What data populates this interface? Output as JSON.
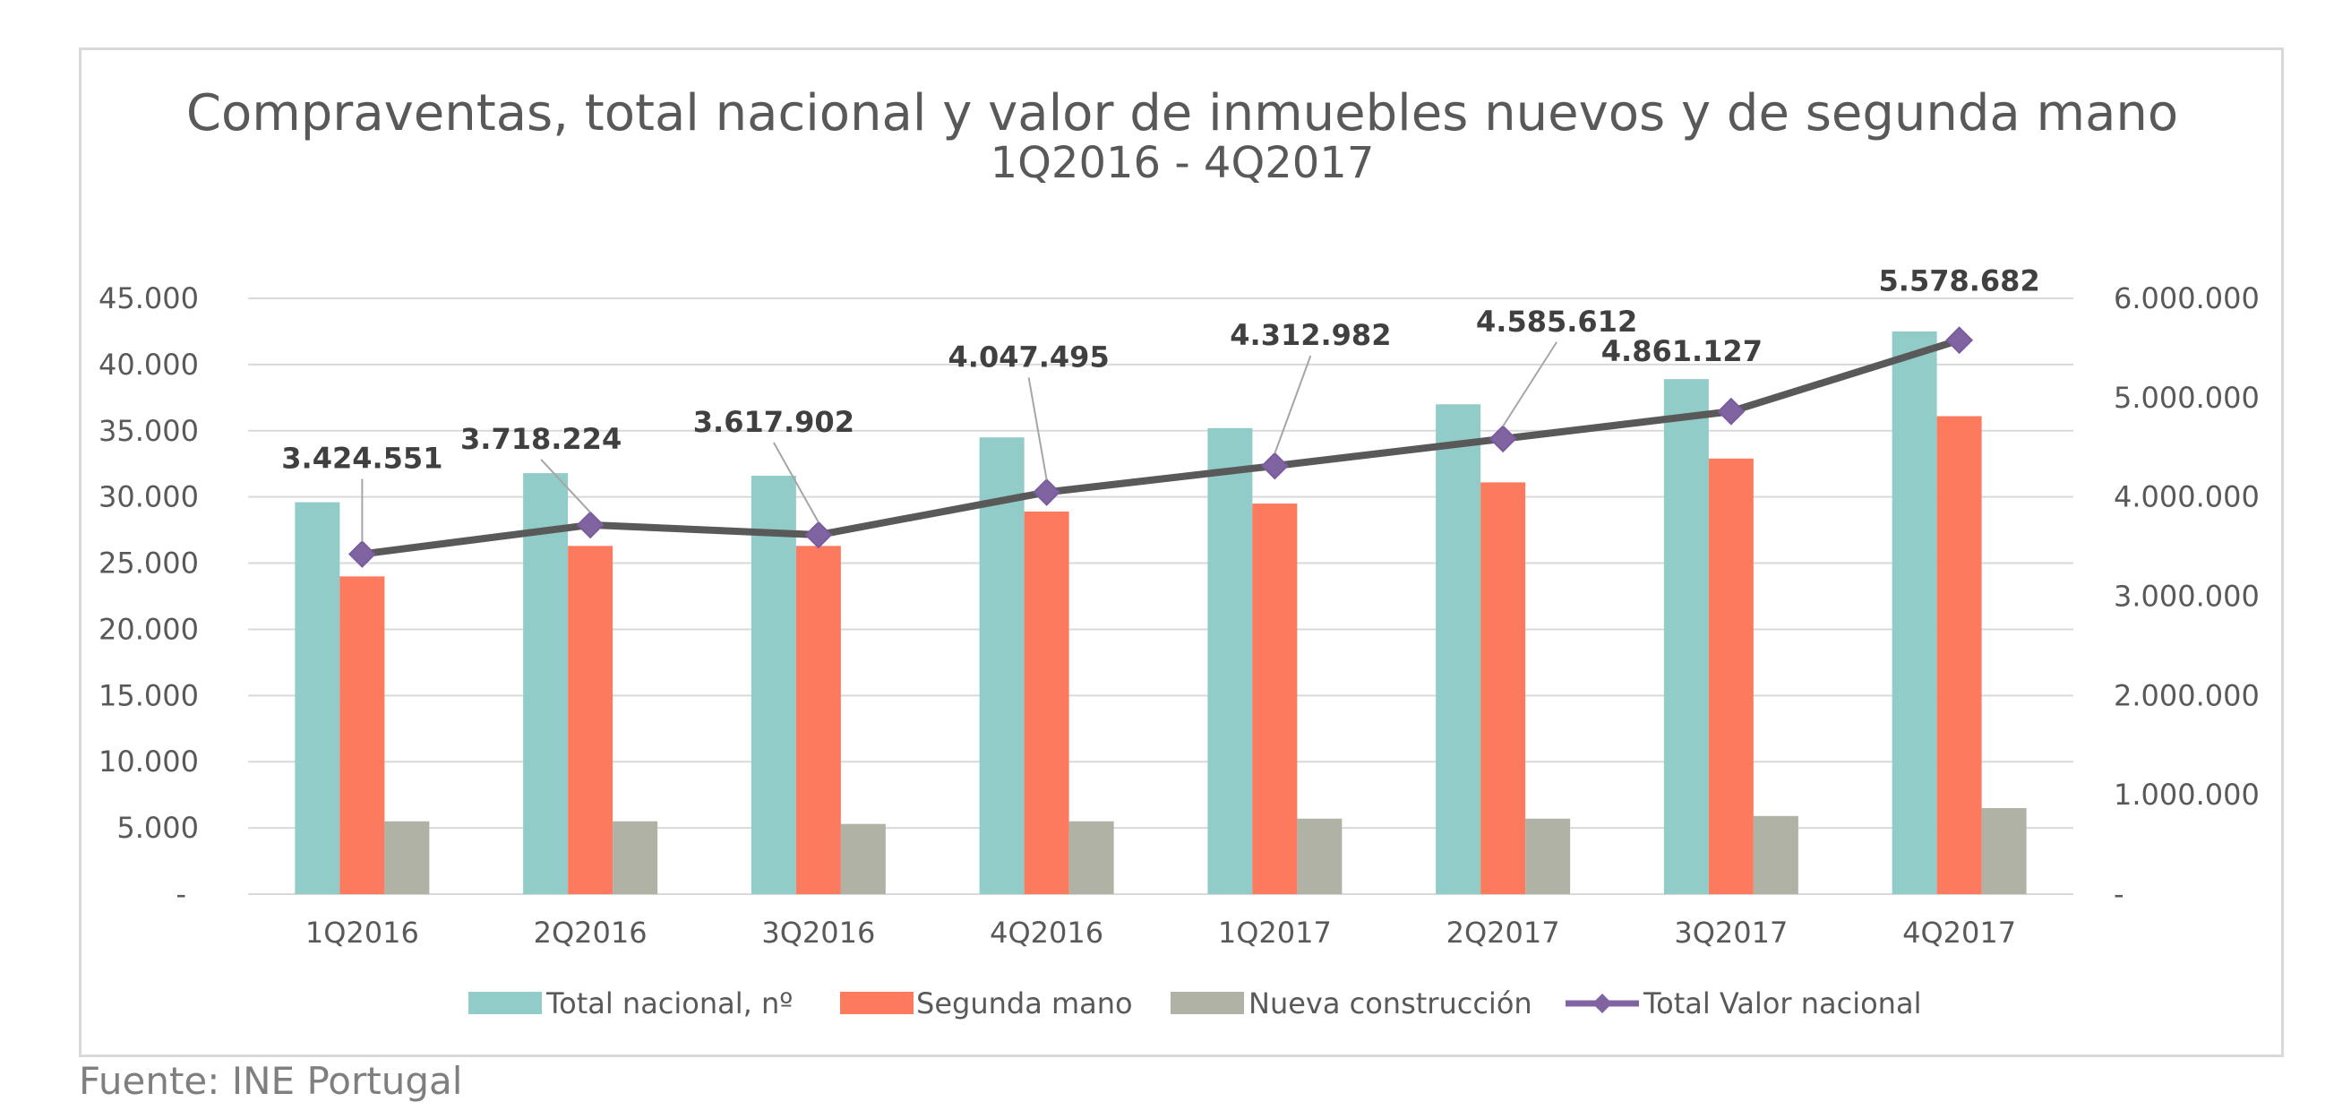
{
  "chart_data": {
    "type": "bar",
    "title": "Compraventas, total nacional y valor de inmuebles nuevos y de segunda mano",
    "subtitle": "1Q2016 - 4Q2017",
    "categories": [
      "1Q2016",
      "2Q2016",
      "3Q2016",
      "4Q2016",
      "1Q2017",
      "2Q2017",
      "3Q2017",
      "4Q2017"
    ],
    "series": [
      {
        "name": "Total nacional, nº",
        "type": "bar",
        "axis": "left",
        "color": "#92ccc9",
        "values": [
          29600,
          31800,
          31600,
          34500,
          35200,
          37000,
          38900,
          42500
        ]
      },
      {
        "name": "Segunda mano",
        "type": "bar",
        "axis": "left",
        "color": "#fc7b5e",
        "values": [
          24000,
          26300,
          26300,
          28900,
          29500,
          31100,
          32900,
          36100
        ]
      },
      {
        "name": "Nueva construcción",
        "type": "bar",
        "axis": "left",
        "color": "#b0b2a6",
        "values": [
          5500,
          5500,
          5300,
          5500,
          5700,
          5700,
          5900,
          6500
        ]
      },
      {
        "name": "Total Valor nacional",
        "type": "line",
        "axis": "right",
        "color": "#595959",
        "marker_color": "#8064a2",
        "values": [
          3424551,
          3718224,
          3617902,
          4047495,
          4312982,
          4585612,
          4861127,
          5578682
        ],
        "labels": [
          "3.424.551",
          "3.718.224",
          "3.617.902",
          "4.047.495",
          "4.312.982",
          "4.585.612",
          "4.861.127",
          "5.578.682"
        ]
      }
    ],
    "y_left": {
      "min": 0,
      "max": 45000,
      "ticks": [
        "-",
        "5.000",
        "10.000",
        "15.000",
        "20.000",
        "25.000",
        "30.000",
        "35.000",
        "40.000",
        "45.000"
      ]
    },
    "y_right": {
      "min": 0,
      "max": 6000000,
      "ticks": [
        "-",
        "1.000.000",
        "2.000.000",
        "3.000.000",
        "4.000.000",
        "5.000.000",
        "6.000.000"
      ]
    },
    "grid": true,
    "legend_position": "bottom"
  },
  "source": "Fuente: INE Portugal"
}
